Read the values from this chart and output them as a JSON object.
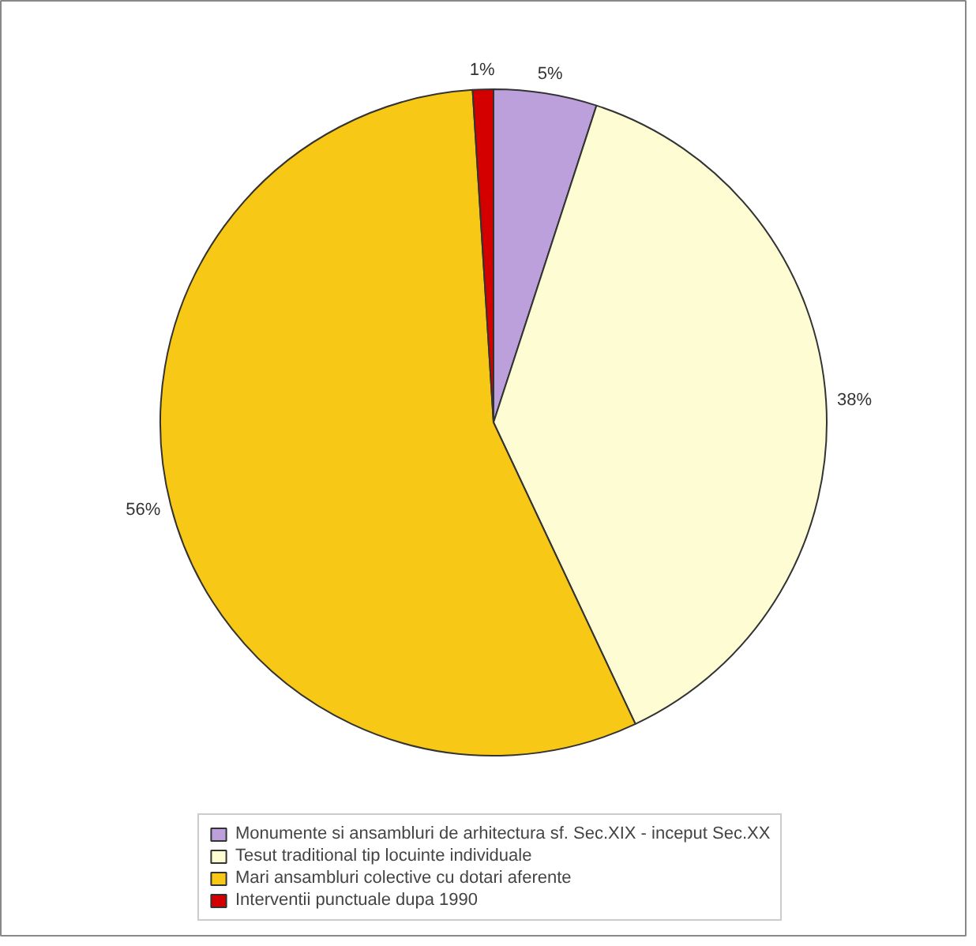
{
  "chart_data": {
    "type": "pie",
    "categories": [
      "Monumente si ansambluri de arhitectura sf. Sec.XIX - inceput Sec.XX",
      "Tesut traditional tip locuinte individuale",
      "Mari ansambluri colective cu dotari aferente",
      "Interventii punctuale dupa 1990"
    ],
    "values": [
      5,
      38,
      56,
      1
    ],
    "colors": [
      "#bca0dc",
      "#fdfcd2",
      "#f7c815",
      "#d40000"
    ],
    "value_labels": [
      "5%",
      "38%",
      "56%",
      "1%"
    ],
    "legend": "bottom"
  }
}
